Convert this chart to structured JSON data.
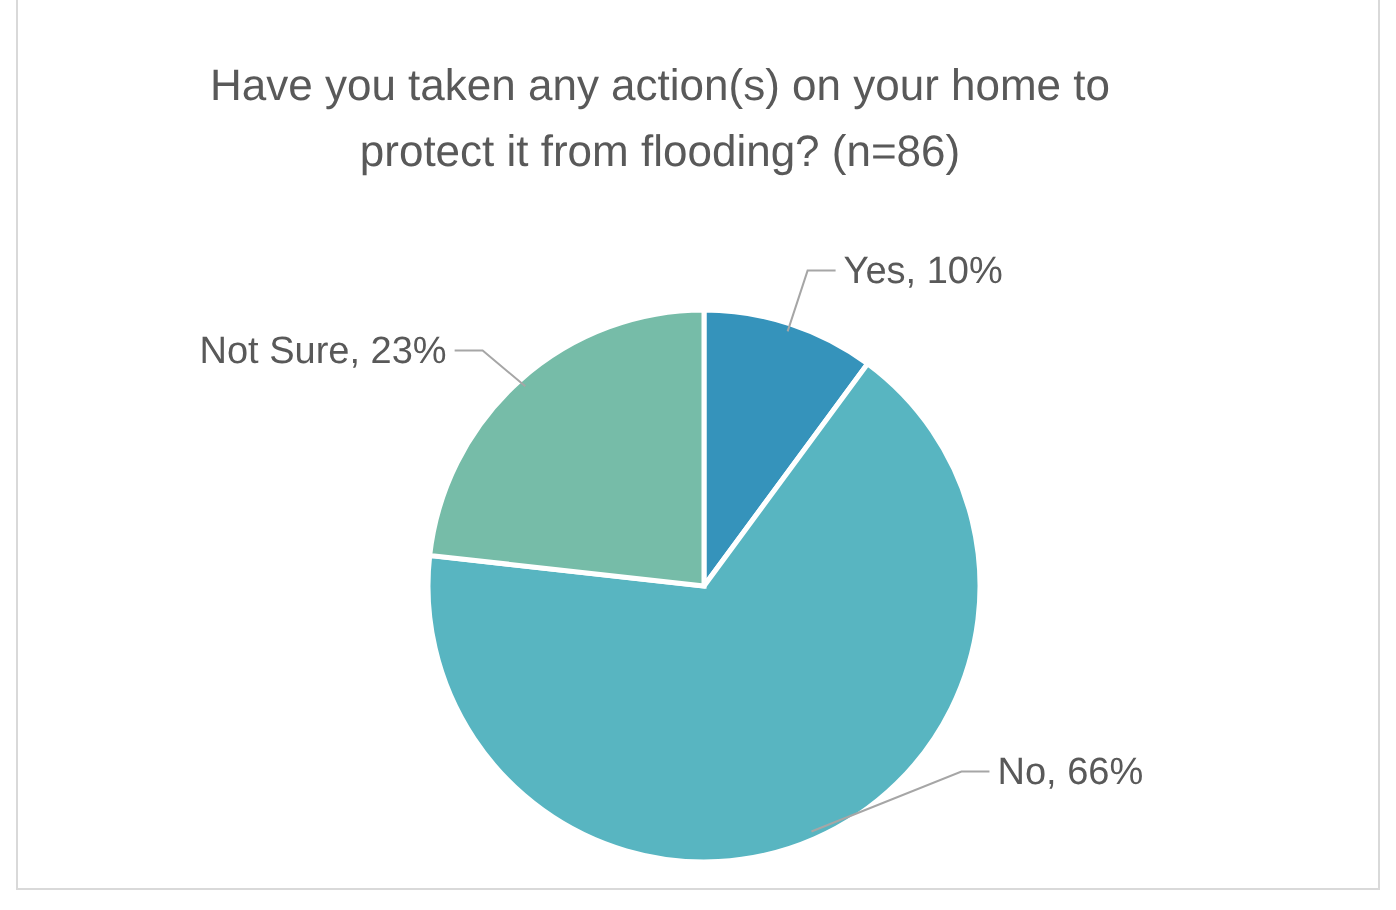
{
  "chart_data": {
    "type": "pie",
    "title": "Have you taken any action(s) on your home to protect it from flooding? (n=86)",
    "categories": [
      "Yes",
      "No",
      "Not Sure"
    ],
    "values": [
      10,
      66,
      23
    ],
    "value_labels": [
      "10%",
      "66%",
      "23%"
    ],
    "colors": [
      "#3593bb",
      "#58b5c1",
      "#76bca8"
    ],
    "legend": false
  }
}
